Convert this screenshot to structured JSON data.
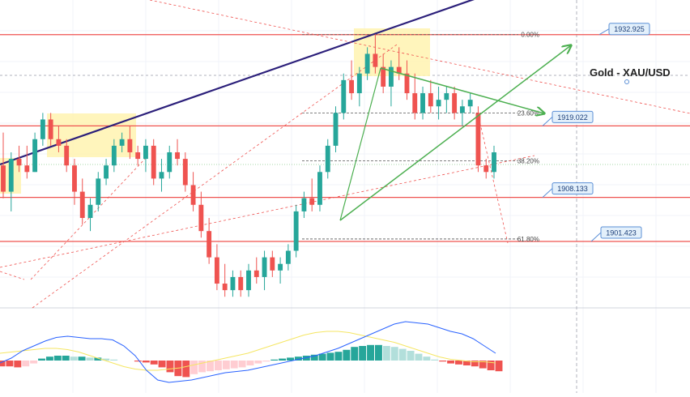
{
  "symbol_label": "Gold - XAU/USD",
  "fib_levels": [
    {
      "label": "0.00%",
      "value": 1932.925
    },
    {
      "label": "23.60%",
      "value": 1921.0
    },
    {
      "label": "38.20%",
      "value": 1913.7
    },
    {
      "label": "61.80%",
      "value": 1901.8
    }
  ],
  "price_tags": [
    {
      "label": "1932.925",
      "value": 1932.925
    },
    {
      "label": "1919.022",
      "value": 1919.022
    },
    {
      "label": "1908.133",
      "value": 1908.133
    },
    {
      "label": "1901.423",
      "value": 1901.423
    }
  ],
  "colors": {
    "bull": "#26a69a",
    "bear": "#ef5350",
    "macd": "#2962ff",
    "signal": "#f5e663",
    "trend": "#2b1f7a",
    "channel": "#4caf50",
    "highlight": "#fff3b0",
    "tag_bg": "#e3f0fb",
    "tag_border": "#5b8fd6"
  },
  "chart_data": {
    "type": "candlestick",
    "symbol": "Gold - XAU/USD",
    "price_levels": [
      1932.925,
      1919.022,
      1908.133,
      1901.423
    ],
    "ylim": [
      1891.3,
      1938.2
    ],
    "candles": [
      {
        "o": 1913,
        "h": 1918,
        "l": 1908,
        "c": 1909
      },
      {
        "o": 1909,
        "h": 1915,
        "l": 1906,
        "c": 1914
      },
      {
        "o": 1914,
        "h": 1916,
        "l": 1912,
        "c": 1913
      },
      {
        "o": 1913,
        "h": 1916,
        "l": 1911,
        "c": 1912
      },
      {
        "o": 1912,
        "h": 1918,
        "l": 1912,
        "c": 1917
      },
      {
        "o": 1917,
        "h": 1921,
        "l": 1916,
        "c": 1920
      },
      {
        "o": 1920,
        "h": 1921,
        "l": 1916,
        "c": 1917
      },
      {
        "o": 1917,
        "h": 1919,
        "l": 1915,
        "c": 1916
      },
      {
        "o": 1916,
        "h": 1917,
        "l": 1912,
        "c": 1913
      },
      {
        "o": 1913,
        "h": 1914,
        "l": 1907,
        "c": 1909
      },
      {
        "o": 1909,
        "h": 1911,
        "l": 1904,
        "c": 1905
      },
      {
        "o": 1905,
        "h": 1908,
        "l": 1903,
        "c": 1907
      },
      {
        "o": 1907,
        "h": 1912,
        "l": 1906,
        "c": 1911
      },
      {
        "o": 1911,
        "h": 1914,
        "l": 1910,
        "c": 1913
      },
      {
        "o": 1913,
        "h": 1917,
        "l": 1912,
        "c": 1916
      },
      {
        "o": 1916,
        "h": 1918,
        "l": 1915,
        "c": 1917
      },
      {
        "o": 1917,
        "h": 1919,
        "l": 1914,
        "c": 1915
      },
      {
        "o": 1915,
        "h": 1916,
        "l": 1913,
        "c": 1914
      },
      {
        "o": 1914,
        "h": 1917,
        "l": 1912,
        "c": 1916
      },
      {
        "o": 1916,
        "h": 1917,
        "l": 1910,
        "c": 1911
      },
      {
        "o": 1911,
        "h": 1914,
        "l": 1909,
        "c": 1912
      },
      {
        "o": 1912,
        "h": 1916,
        "l": 1911,
        "c": 1915
      },
      {
        "o": 1915,
        "h": 1917,
        "l": 1913,
        "c": 1914
      },
      {
        "o": 1914,
        "h": 1915,
        "l": 1909,
        "c": 1910
      },
      {
        "o": 1910,
        "h": 1912,
        "l": 1906,
        "c": 1907
      },
      {
        "o": 1907,
        "h": 1909,
        "l": 1902,
        "c": 1903
      },
      {
        "o": 1903,
        "h": 1905,
        "l": 1898,
        "c": 1899
      },
      {
        "o": 1899,
        "h": 1901,
        "l": 1894,
        "c": 1895
      },
      {
        "o": 1895,
        "h": 1898,
        "l": 1893,
        "c": 1894
      },
      {
        "o": 1894,
        "h": 1897,
        "l": 1893,
        "c": 1896
      },
      {
        "o": 1896,
        "h": 1897,
        "l": 1893,
        "c": 1894
      },
      {
        "o": 1894,
        "h": 1898,
        "l": 1893,
        "c": 1897
      },
      {
        "o": 1897,
        "h": 1899,
        "l": 1895,
        "c": 1896
      },
      {
        "o": 1896,
        "h": 1900,
        "l": 1894,
        "c": 1899
      },
      {
        "o": 1899,
        "h": 1900,
        "l": 1896,
        "c": 1897
      },
      {
        "o": 1897,
        "h": 1899,
        "l": 1895,
        "c": 1898
      },
      {
        "o": 1898,
        "h": 1901,
        "l": 1897,
        "c": 1900
      },
      {
        "o": 1900,
        "h": 1907,
        "l": 1899,
        "c": 1906
      },
      {
        "o": 1906,
        "h": 1909,
        "l": 1905,
        "c": 1908
      },
      {
        "o": 1908,
        "h": 1911,
        "l": 1906,
        "c": 1907
      },
      {
        "o": 1907,
        "h": 1913,
        "l": 1906,
        "c": 1912
      },
      {
        "o": 1912,
        "h": 1917,
        "l": 1911,
        "c": 1916
      },
      {
        "o": 1916,
        "h": 1922,
        "l": 1915,
        "c": 1921
      },
      {
        "o": 1921,
        "h": 1927,
        "l": 1920,
        "c": 1926
      },
      {
        "o": 1926,
        "h": 1929,
        "l": 1923,
        "c": 1924
      },
      {
        "o": 1924,
        "h": 1928,
        "l": 1922,
        "c": 1927
      },
      {
        "o": 1927,
        "h": 1931,
        "l": 1926,
        "c": 1930
      },
      {
        "o": 1930,
        "h": 1933,
        "l": 1927,
        "c": 1928
      },
      {
        "o": 1928,
        "h": 1930,
        "l": 1924,
        "c": 1925
      },
      {
        "o": 1925,
        "h": 1929,
        "l": 1922,
        "c": 1928
      },
      {
        "o": 1928,
        "h": 1931,
        "l": 1926,
        "c": 1927
      },
      {
        "o": 1927,
        "h": 1929,
        "l": 1923,
        "c": 1924
      },
      {
        "o": 1924,
        "h": 1927,
        "l": 1920,
        "c": 1921
      },
      {
        "o": 1921,
        "h": 1925,
        "l": 1920,
        "c": 1924
      },
      {
        "o": 1924,
        "h": 1926,
        "l": 1921,
        "c": 1922
      },
      {
        "o": 1922,
        "h": 1925,
        "l": 1920,
        "c": 1923
      },
      {
        "o": 1923,
        "h": 1925,
        "l": 1921,
        "c": 1924
      },
      {
        "o": 1924,
        "h": 1925,
        "l": 1920,
        "c": 1921
      },
      {
        "o": 1921,
        "h": 1923,
        "l": 1919,
        "c": 1922
      },
      {
        "o": 1922,
        "h": 1924,
        "l": 1921,
        "c": 1923
      },
      {
        "o": 1921,
        "h": 1922,
        "l": 1912,
        "c": 1913
      },
      {
        "o": 1913,
        "h": 1914,
        "l": 1911,
        "c": 1912
      },
      {
        "o": 1912,
        "h": 1916,
        "l": 1911,
        "c": 1915
      }
    ],
    "macd_histogram": [
      -0.3,
      -0.3,
      -0.35,
      -0.3,
      -0.15,
      0.1,
      0.2,
      0.25,
      0.25,
      0.2,
      0.2,
      0.15,
      0.15,
      0.1,
      0.05,
      0,
      0,
      -0.05,
      -0.1,
      -0.2,
      -0.35,
      -0.6,
      -0.8,
      -0.85,
      -0.7,
      -0.6,
      -0.55,
      -0.5,
      -0.45,
      -0.4,
      -0.35,
      -0.25,
      -0.15,
      -0.05,
      0.05,
      0.1,
      0.15,
      0.2,
      0.25,
      0.3,
      0.35,
      0.4,
      0.45,
      0.55,
      0.7,
      0.75,
      0.8,
      0.8,
      0.75,
      0.7,
      0.6,
      0.5,
      0.35,
      0.2,
      0.05,
      -0.05,
      -0.15,
      -0.2,
      -0.25,
      -0.3,
      -0.4,
      -0.5,
      -0.55
    ],
    "macd_line": [
      -0.1,
      0.1,
      0.4,
      0.6,
      0.8,
      0.95,
      1.0,
      0.95,
      0.9,
      0.9,
      0.85,
      0.6,
      0.2,
      -0.4,
      -0.8,
      -0.9,
      -0.85,
      -0.8,
      -0.7,
      -0.6,
      -0.5,
      -0.45,
      -0.4,
      -0.3,
      -0.2,
      -0.1,
      0,
      0.1,
      0.2,
      0.35,
      0.5,
      0.7,
      0.9,
      1.1,
      1.3,
      1.5,
      1.6,
      1.55,
      1.5,
      1.35,
      1.2,
      1.1,
      0.9,
      0.6,
      0.3
    ],
    "signal_line": [
      0.3,
      0.35,
      0.4,
      0.45,
      0.5,
      0.5,
      0.45,
      0.35,
      0.2,
      0.05,
      -0.1,
      -0.25,
      -0.35,
      -0.4,
      -0.4,
      -0.35,
      -0.3,
      -0.2,
      -0.1,
      0,
      0.1,
      0.2,
      0.3,
      0.45,
      0.6,
      0.75,
      0.9,
      1.05,
      1.15,
      1.2,
      1.2,
      1.15,
      1.05,
      0.95,
      0.85,
      0.75,
      0.6,
      0.45,
      0.3,
      0.15,
      0.05,
      0,
      -0.05,
      -0.05,
      -0.1
    ]
  }
}
